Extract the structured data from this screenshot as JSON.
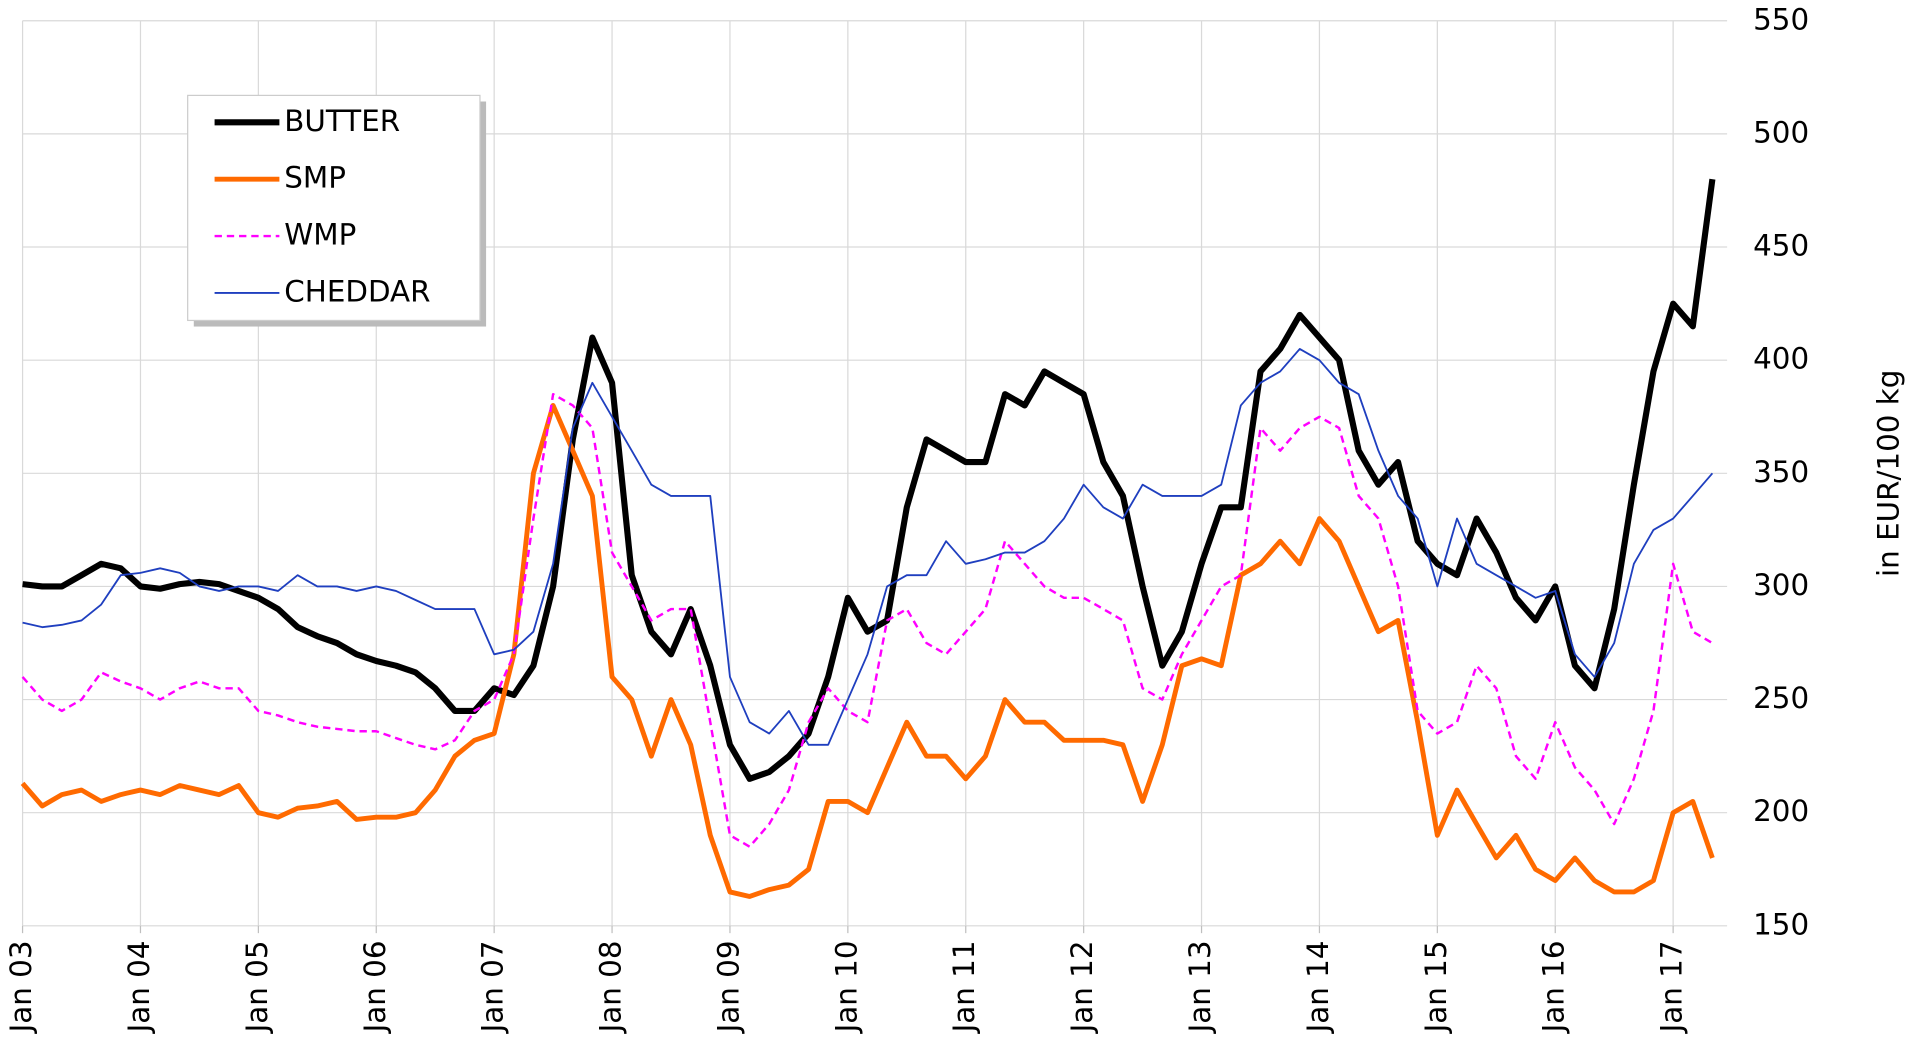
{
  "chart_data": {
    "type": "line",
    "y_axis_label": "in EUR/100 kg",
    "categories": [
      "Jan 03",
      null,
      null,
      null,
      null,
      null,
      "Jan 04",
      null,
      null,
      null,
      null,
      null,
      "Jan 05",
      null,
      null,
      null,
      null,
      null,
      "Jan 06",
      null,
      null,
      null,
      null,
      null,
      "Jan 07",
      null,
      null,
      null,
      null,
      null,
      "Jan 08",
      null,
      null,
      null,
      null,
      null,
      "Jan 09",
      null,
      null,
      null,
      null,
      null,
      "Jan 10",
      null,
      null,
      null,
      null,
      null,
      "Jan 11",
      null,
      null,
      null,
      null,
      null,
      "Jan 12",
      null,
      null,
      null,
      null,
      null,
      "Jan 13",
      null,
      null,
      null,
      null,
      null,
      "Jan 14",
      null,
      null,
      null,
      null,
      null,
      "Jan 15",
      null,
      null,
      null,
      null,
      null,
      "Jan 16",
      null,
      null,
      null,
      null,
      null,
      "Jan 17",
      null,
      null
    ],
    "series": [
      {
        "name": "BUTTER",
        "color": "#000000",
        "style": "solid",
        "values": [
          301,
          300,
          300,
          305,
          310,
          308,
          300,
          299,
          301,
          302,
          301,
          298,
          295,
          290,
          282,
          278,
          275,
          270,
          267,
          265,
          262,
          255,
          245,
          245,
          255,
          252,
          265,
          300,
          365,
          410,
          390,
          305,
          280,
          270,
          290,
          265,
          230,
          215,
          218,
          225,
          235,
          260,
          295,
          280,
          285,
          335,
          365,
          360,
          355,
          355,
          385,
          380,
          395,
          390,
          385,
          355,
          340,
          300,
          265,
          280,
          310,
          335,
          335,
          395,
          405,
          420,
          410,
          400,
          360,
          345,
          355,
          320,
          310,
          305,
          330,
          315,
          295,
          285,
          300,
          265,
          255,
          290,
          345,
          395,
          425,
          415,
          480
        ]
      },
      {
        "name": "SMP",
        "color": "#ff6a00",
        "style": "solid",
        "values": [
          213,
          203,
          208,
          210,
          205,
          208,
          210,
          208,
          212,
          210,
          208,
          212,
          200,
          198,
          202,
          203,
          205,
          197,
          198,
          198,
          200,
          210,
          225,
          232,
          235,
          270,
          350,
          380,
          360,
          340,
          260,
          250,
          225,
          250,
          230,
          190,
          165,
          163,
          166,
          168,
          175,
          205,
          205,
          200,
          220,
          240,
          225,
          225,
          215,
          225,
          250,
          240,
          240,
          232,
          232,
          232,
          230,
          205,
          230,
          265,
          268,
          265,
          305,
          310,
          320,
          310,
          330,
          320,
          300,
          280,
          285,
          240,
          190,
          210,
          195,
          180,
          190,
          175,
          170,
          180,
          170,
          165,
          165,
          170,
          200,
          205,
          180
        ]
      },
      {
        "name": "WMP",
        "color": "#ff00ff",
        "style": "dashed",
        "values": [
          260,
          250,
          245,
          250,
          262,
          258,
          255,
          250,
          255,
          258,
          255,
          255,
          245,
          243,
          240,
          238,
          237,
          236,
          236,
          233,
          230,
          228,
          232,
          245,
          250,
          270,
          330,
          385,
          380,
          370,
          315,
          300,
          285,
          290,
          290,
          240,
          190,
          185,
          195,
          210,
          240,
          255,
          245,
          240,
          285,
          290,
          275,
          270,
          280,
          290,
          320,
          310,
          300,
          295,
          295,
          290,
          285,
          255,
          250,
          270,
          285,
          300,
          305,
          370,
          360,
          370,
          375,
          370,
          340,
          330,
          300,
          245,
          235,
          240,
          265,
          255,
          225,
          215,
          240,
          220,
          210,
          195,
          215,
          245,
          310,
          280,
          275
        ]
      },
      {
        "name": "CHEDDAR",
        "color": "#1f3fbf",
        "style": "solid",
        "values": [
          284,
          282,
          283,
          285,
          292,
          305,
          306,
          308,
          306,
          300,
          298,
          300,
          300,
          298,
          305,
          300,
          300,
          298,
          300,
          298,
          294,
          290,
          290,
          290,
          270,
          272,
          280,
          310,
          370,
          390,
          375,
          360,
          345,
          340,
          340,
          340,
          260,
          240,
          235,
          245,
          230,
          230,
          250,
          270,
          300,
          305,
          305,
          320,
          310,
          312,
          315,
          315,
          320,
          330,
          345,
          335,
          330,
          345,
          340,
          340,
          340,
          345,
          380,
          390,
          395,
          405,
          400,
          390,
          385,
          360,
          340,
          330,
          300,
          330,
          310,
          305,
          300,
          295,
          298,
          270,
          260,
          275,
          310,
          325,
          330,
          340,
          350
        ]
      }
    ],
    "ylim": [
      150,
      550
    ],
    "yticks": [
      150,
      200,
      250,
      300,
      350,
      400,
      450,
      500,
      550
    ],
    "grid": true,
    "legend": "top-left"
  }
}
